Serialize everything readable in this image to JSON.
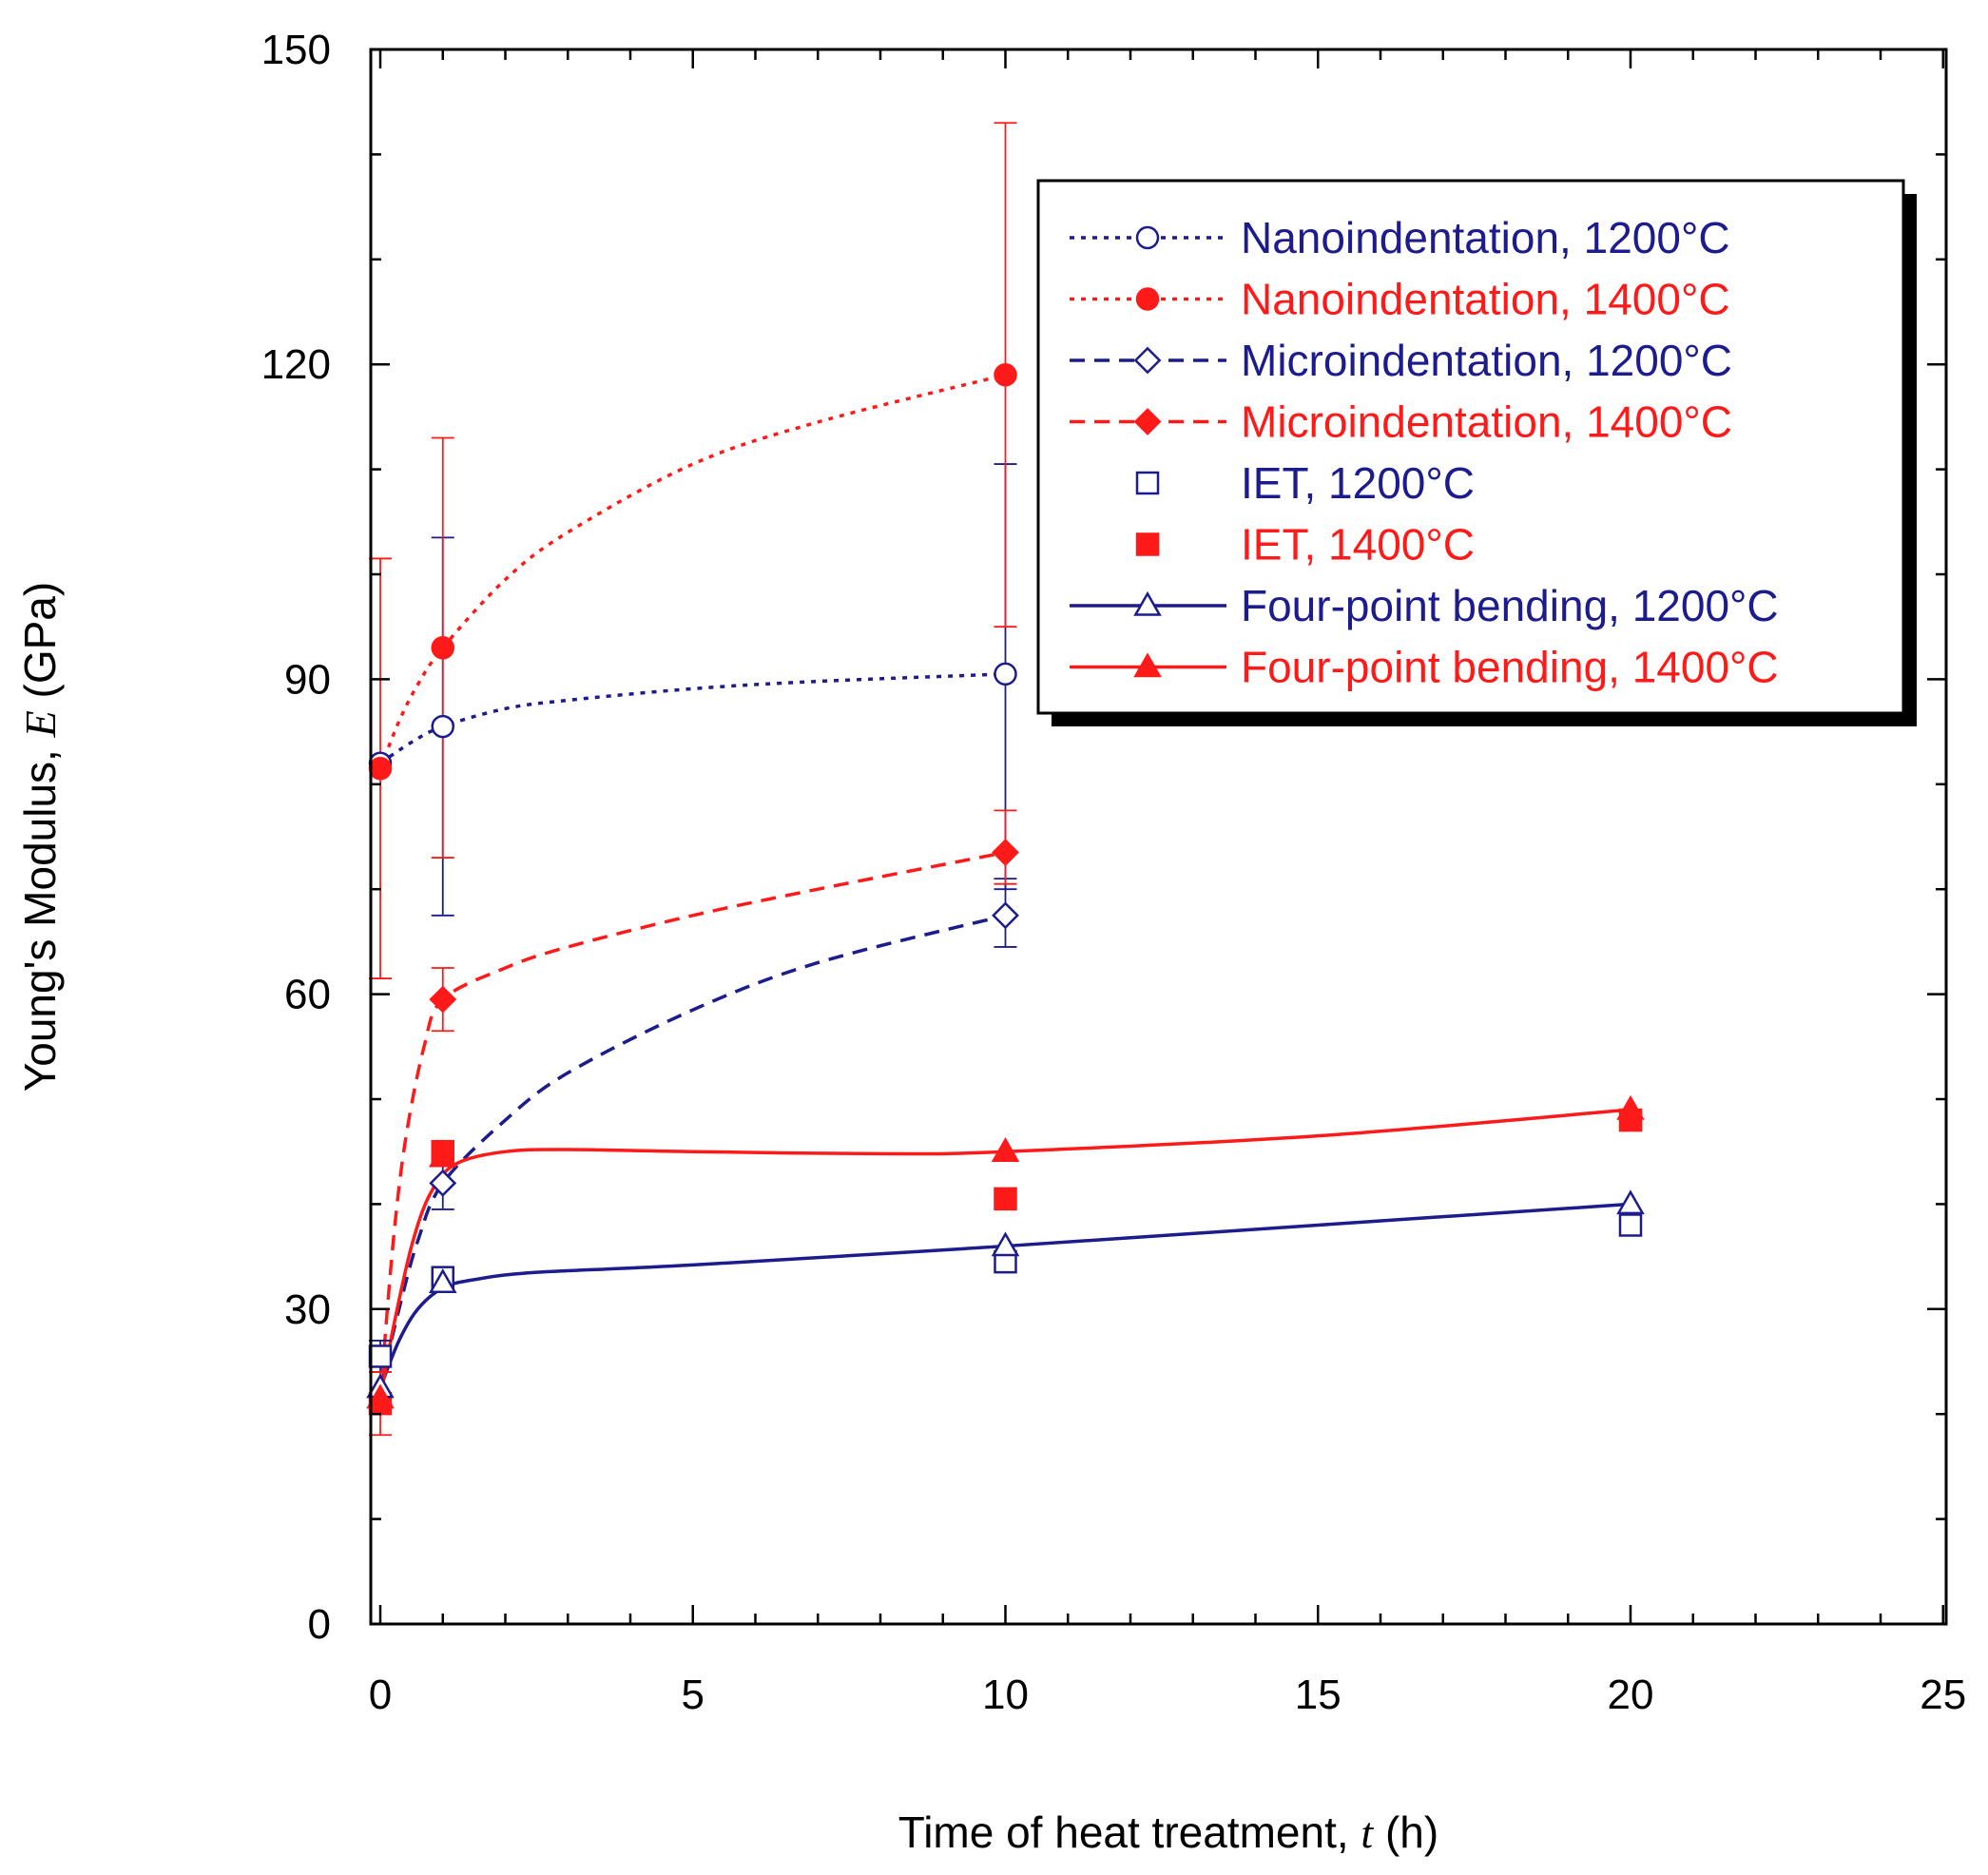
{
  "chart_data": {
    "type": "scatter",
    "title": "",
    "xlabel": {
      "prefix": "Time of heat treatment, ",
      "symbol": "t",
      "suffix": " (h)"
    },
    "ylabel": {
      "prefix": "Young's Modulus, ",
      "symbol": "E",
      "suffix": " (GPa)"
    },
    "xlim": [
      0,
      25
    ],
    "ylim": [
      0,
      150
    ],
    "xticks": [
      "0",
      "5",
      "10",
      "15",
      "20",
      "25"
    ],
    "yticks": [
      "0",
      "30",
      "60",
      "90",
      "120",
      "150"
    ],
    "grid": false,
    "legend_position": "top-right",
    "colors": {
      "blue": "#1c1c8c",
      "red": "#ff1a1a"
    },
    "series": [
      {
        "name": "Nanoindentation, 1200°C",
        "color": "#1c1c8c",
        "marker": "circle",
        "filled": false,
        "line": "dotted",
        "x": [
          0,
          1,
          10
        ],
        "y": [
          82,
          85.5,
          90.5
        ],
        "err_low": [
          null,
          67.5,
          70
        ],
        "err_high": [
          null,
          103.5,
          110.5
        ],
        "curve_x": [
          0,
          0.5,
          1,
          2,
          3,
          5,
          7,
          10
        ],
        "curve_y": [
          82,
          84,
          85.5,
          87.2,
          88,
          89.1,
          89.8,
          90.5
        ]
      },
      {
        "name": "Nanoindentation, 1400°C",
        "color": "#ff1a1a",
        "marker": "circle",
        "filled": true,
        "line": "dotted",
        "x": [
          0,
          1,
          10
        ],
        "y": [
          81.5,
          93,
          119
        ],
        "err_low": [
          61.5,
          73,
          95
        ],
        "err_high": [
          101.5,
          113,
          143
        ],
        "curve_x": [
          0,
          0.3,
          0.6,
          1,
          2,
          3,
          5,
          7,
          10
        ],
        "curve_y": [
          81.5,
          86,
          89.5,
          93,
          99.5,
          104,
          110.5,
          114.5,
          119
        ]
      },
      {
        "name": "Microindentation, 1200°C",
        "color": "#1c1c8c",
        "marker": "diamond",
        "filled": false,
        "line": "dashed",
        "x": [
          1,
          10
        ],
        "y": [
          42,
          67.5
        ],
        "err_low": [
          39.5,
          64.5
        ],
        "err_high": [
          44,
          71
        ],
        "curve_x": [
          0,
          0.3,
          0.6,
          1,
          2,
          3,
          5,
          7,
          10
        ],
        "curve_y": [
          22.5,
          30,
          36.5,
          42,
          48,
          52.5,
          58.5,
          63,
          67.5
        ]
      },
      {
        "name": "Microindentation, 1400°C",
        "color": "#ff1a1a",
        "marker": "diamond",
        "filled": true,
        "line": "dashed",
        "x": [
          1,
          10
        ],
        "y": [
          59.5,
          73.5
        ],
        "err_low": [
          56.5,
          70.5
        ],
        "err_high": [
          62.5,
          77.5
        ],
        "curve_x": [
          0,
          0.2,
          0.4,
          0.7,
          1,
          2,
          3,
          5,
          7,
          10
        ],
        "curve_y": [
          21.5,
          36,
          46,
          55,
          59.5,
          62.5,
          64.5,
          67.5,
          70,
          73.5
        ]
      },
      {
        "name": "IET, 1200°C",
        "color": "#1c1c8c",
        "marker": "square",
        "filled": false,
        "line": "none",
        "x": [
          0,
          1,
          10,
          20
        ],
        "y": [
          25.5,
          33,
          34.5,
          38
        ],
        "err_low": [
          24,
          null,
          null,
          null
        ],
        "err_high": [
          27,
          null,
          null,
          null
        ]
      },
      {
        "name": "IET, 1400°C",
        "color": "#ff1a1a",
        "marker": "square",
        "filled": true,
        "line": "none",
        "x": [
          0,
          1,
          10,
          20
        ],
        "y": [
          21,
          45,
          40.5,
          48
        ],
        "err_low": [
          18,
          null,
          null,
          null
        ],
        "err_high": [
          24,
          null,
          null,
          null
        ]
      },
      {
        "name": "Four-point bending, 1200°C",
        "color": "#1c1c8c",
        "marker": "triangle",
        "filled": false,
        "line": "solid",
        "x": [
          0,
          1,
          10,
          20
        ],
        "y": [
          22.5,
          32.5,
          36,
          40
        ],
        "err_low": [
          null,
          null,
          null,
          null
        ],
        "err_high": [
          null,
          null,
          null,
          null
        ],
        "curve_x": [
          0,
          0.3,
          0.6,
          1,
          1.5,
          2.5,
          5,
          10,
          15,
          20
        ],
        "curve_y": [
          22.5,
          27,
          30,
          32,
          32.8,
          33.5,
          34.2,
          36,
          38,
          40
        ]
      },
      {
        "name": "Four-point bending, 1400°C",
        "color": "#ff1a1a",
        "marker": "triangle",
        "filled": true,
        "line": "solid",
        "x": [
          0,
          1,
          10,
          20
        ],
        "y": [
          21.5,
          44.5,
          45,
          49
        ],
        "err_low": [
          null,
          null,
          null,
          null
        ],
        "err_high": [
          null,
          null,
          null,
          null
        ],
        "curve_x": [
          0,
          0.2,
          0.5,
          0.8,
          1.2,
          2,
          3,
          5,
          8,
          10,
          15,
          20
        ],
        "curve_y": [
          21.5,
          28,
          36,
          41,
          43.8,
          45,
          45.2,
          45,
          44.8,
          45,
          46.5,
          49
        ]
      }
    ]
  }
}
